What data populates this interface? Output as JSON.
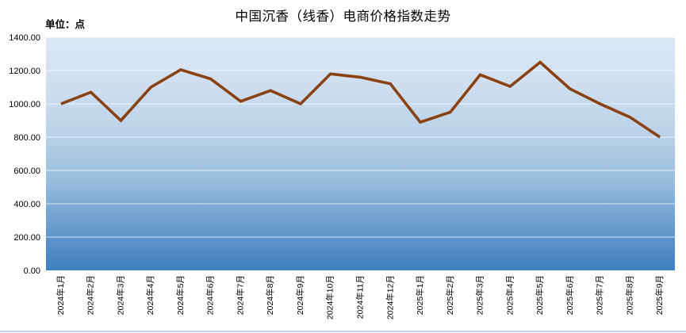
{
  "header": {
    "title": "中国沉香（线香）电商价格指数走势",
    "unit_label": "单位：点"
  },
  "chart_data": {
    "type": "line",
    "title": "中国沉香（线香）电商价格指数走势",
    "unit_label": "单位：点",
    "categories": [
      "2024年1月",
      "2024年2月",
      "2024年3月",
      "2024年4月",
      "2024年5月",
      "2024年6月",
      "2024年7月",
      "2024年8月",
      "2024年9月",
      "2024年10月",
      "2024年11月",
      "2024年12月",
      "2025年1月",
      "2025年2月",
      "2025年3月",
      "2025年4月",
      "2025年5月",
      "2025年6月",
      "2025年7月",
      "2025年8月",
      "2025年9月"
    ],
    "values": [
      1000,
      1070,
      900,
      1100,
      1205,
      1150,
      1015,
      1080,
      1000,
      1180,
      1160,
      1120,
      890,
      950,
      1175,
      1105,
      1250,
      1090,
      1000,
      920,
      800
    ],
    "ylim": [
      0,
      1400
    ],
    "ytick_step": 200,
    "ytick_labels": [
      "0.00",
      "200.00",
      "400.00",
      "600.00",
      "800.00",
      "1000.00",
      "1200.00",
      "1400.00"
    ],
    "grid": true,
    "legend": false,
    "x_labels_rotated": true,
    "colors": {
      "line": "#8a4213",
      "gridline": "#ffffff",
      "axis_text": "#000000",
      "plot_gradient": [
        [
          "0%",
          "#dbe7f5"
        ],
        [
          "20%",
          "#cfdff0"
        ],
        [
          "40%",
          "#bcd3e9"
        ],
        [
          "60%",
          "#9cbfde"
        ],
        [
          "80%",
          "#6d9ecd"
        ],
        [
          "100%",
          "#3e7fc0"
        ]
      ]
    }
  }
}
